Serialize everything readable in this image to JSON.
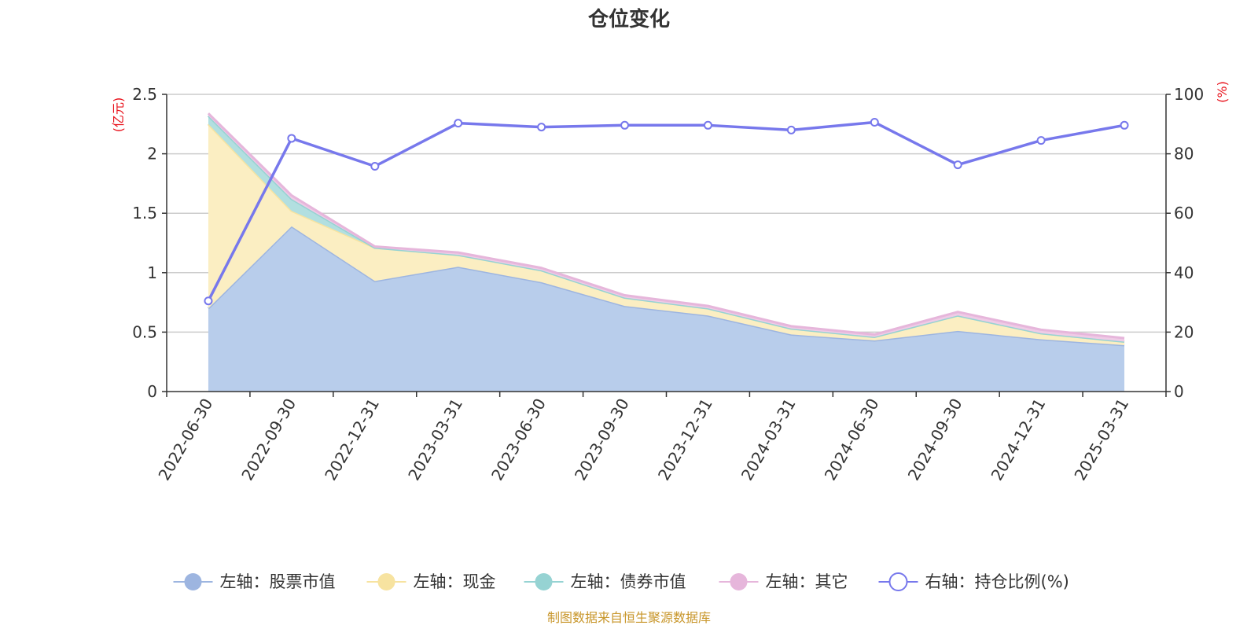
{
  "chart_data": {
    "type": "area",
    "title": "仓位变化",
    "source": "制图数据来自恒生聚源数据库",
    "left_axis": {
      "unit": "(亿元)",
      "range": [
        0,
        2.5
      ],
      "ticks": [
        "0",
        "0.5",
        "1",
        "1.5",
        "2",
        "2.5"
      ]
    },
    "right_axis": {
      "unit": "(%)",
      "range": [
        0,
        100
      ],
      "ticks": [
        "0",
        "20",
        "40",
        "60",
        "80",
        "100"
      ]
    },
    "grid": true,
    "legend_position": "bottom",
    "categories": [
      "2022-06-30",
      "2022-09-30",
      "2022-12-31",
      "2023-03-31",
      "2023-06-30",
      "2023-09-30",
      "2023-12-31",
      "2024-03-31",
      "2024-06-30",
      "2024-09-30",
      "2024-12-31",
      "2025-03-31"
    ],
    "series": [
      {
        "name": "左轴：股票市值",
        "axis": "left",
        "type": "stacked-area",
        "color": "#9db5e0",
        "fill": "#b8cdeb",
        "values": [
          0.7,
          1.39,
          0.93,
          1.05,
          0.92,
          0.72,
          0.64,
          0.48,
          0.43,
          0.51,
          0.44,
          0.39
        ]
      },
      {
        "name": "左轴：现金",
        "axis": "left",
        "type": "stacked-area",
        "color": "#f7e3a0",
        "fill": "#fbeec2",
        "values": [
          1.55,
          0.13,
          0.28,
          0.1,
          0.1,
          0.07,
          0.06,
          0.05,
          0.03,
          0.13,
          0.05,
          0.03
        ]
      },
      {
        "name": "左轴：债券市值",
        "axis": "left",
        "type": "stacked-area",
        "color": "#96d3d3",
        "fill": "#b2dfe0",
        "values": [
          0.07,
          0.1,
          0.0,
          0.0,
          0.0,
          0.0,
          0.0,
          0.0,
          0.0,
          0.0,
          0.0,
          0.0
        ]
      },
      {
        "name": "左轴：其它",
        "axis": "left",
        "type": "stacked-area",
        "color": "#e6b6db",
        "fill": "#efcbe6",
        "values": [
          0.02,
          0.03,
          0.01,
          0.02,
          0.02,
          0.02,
          0.02,
          0.02,
          0.02,
          0.03,
          0.03,
          0.03
        ]
      },
      {
        "name": "右轴：持仓比例(%)",
        "axis": "right",
        "type": "line",
        "color": "#7778ec",
        "values": [
          30.5,
          85.2,
          75.8,
          90.3,
          89.0,
          89.6,
          89.6,
          88.0,
          90.6,
          76.3,
          84.5,
          89.6
        ]
      }
    ]
  }
}
